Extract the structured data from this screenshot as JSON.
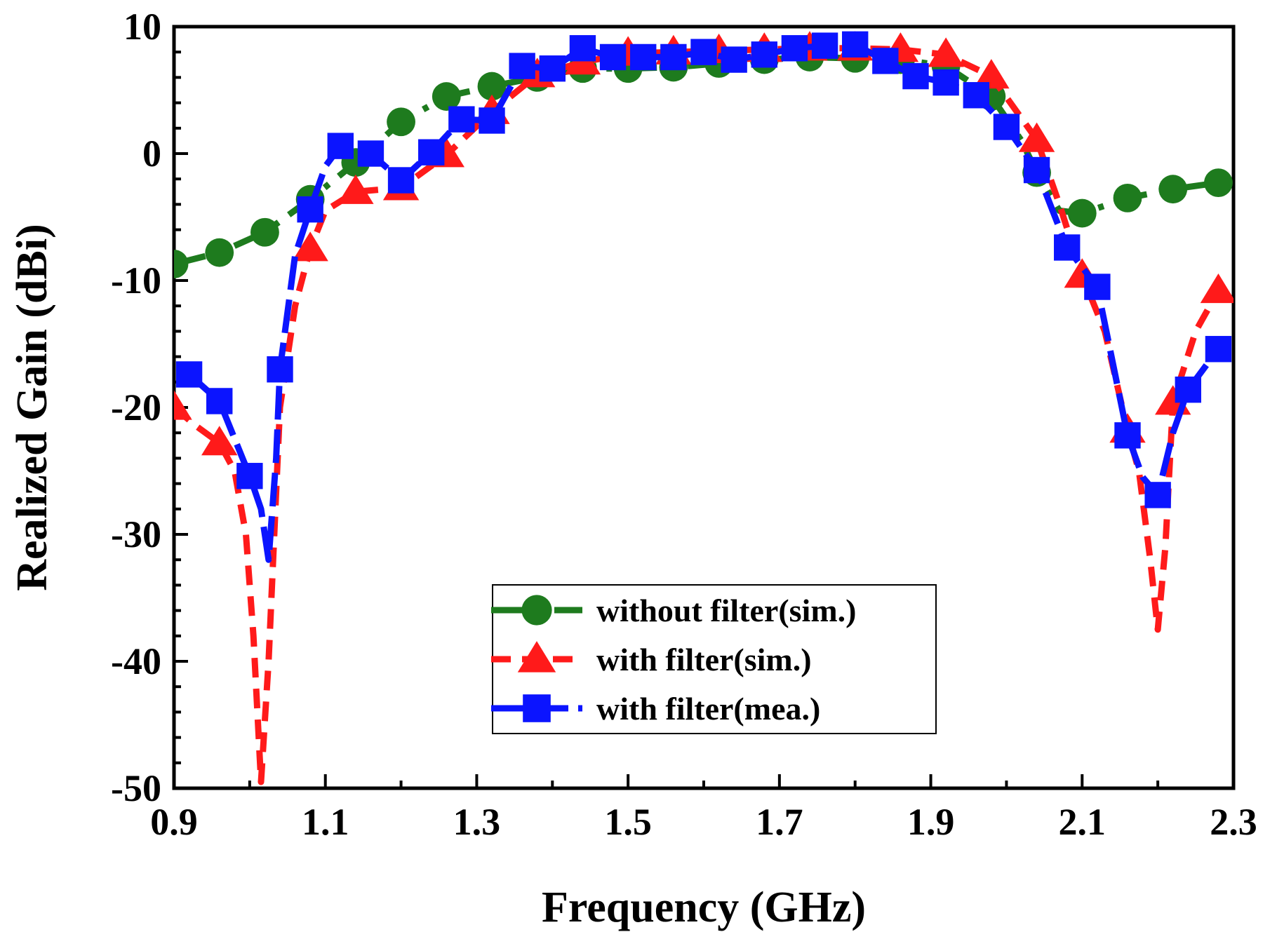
{
  "chart_data": {
    "type": "line",
    "title": "",
    "xlabel": "Frequency (GHz)",
    "ylabel": "Realized Gain (dBi)",
    "xlim": [
      0.9,
      2.3
    ],
    "ylim": [
      -50,
      10
    ],
    "x_ticks": [
      "0.9",
      "1.1",
      "1.3",
      "1.5",
      "1.7",
      "1.9",
      "2.1",
      "2.3"
    ],
    "x_tick_values": [
      0.9,
      1.1,
      1.3,
      1.5,
      1.7,
      1.9,
      2.1,
      2.3
    ],
    "y_ticks": [
      "10",
      "0",
      "-10",
      "-20",
      "-30",
      "-40",
      "-50"
    ],
    "y_tick_values": [
      10,
      0,
      -10,
      -20,
      -30,
      -40,
      -50
    ],
    "grid": false,
    "legend_position": "bottom-center",
    "series": [
      {
        "name": "without filter(sim.)",
        "color": "#1e7b1e",
        "dash": "long-dash-dot",
        "marker": "circle",
        "x": [
          0.9,
          0.96,
          1.02,
          1.08,
          1.14,
          1.2,
          1.26,
          1.32,
          1.38,
          1.44,
          1.5,
          1.56,
          1.62,
          1.68,
          1.74,
          1.8,
          1.86,
          1.92,
          1.98,
          2.04,
          2.1,
          2.16,
          2.22,
          2.28
        ],
        "y": [
          -8.7,
          -7.8,
          -6.2,
          -3.6,
          -0.7,
          2.5,
          4.5,
          5.3,
          6.0,
          6.7,
          6.7,
          6.8,
          7.1,
          7.4,
          7.6,
          7.5,
          7.4,
          6.9,
          4.5,
          -1.5,
          -4.7,
          -3.5,
          -2.8,
          -2.3
        ],
        "curve": [
          [
            0.9,
            -8.7
          ],
          [
            0.96,
            -7.8
          ],
          [
            1.02,
            -6.2
          ],
          [
            1.08,
            -3.6
          ],
          [
            1.14,
            -0.7
          ],
          [
            1.2,
            2.5
          ],
          [
            1.26,
            4.5
          ],
          [
            1.32,
            5.3
          ],
          [
            1.38,
            6.0
          ],
          [
            1.44,
            6.7
          ],
          [
            1.5,
            6.7
          ],
          [
            1.56,
            6.8
          ],
          [
            1.62,
            7.1
          ],
          [
            1.68,
            7.4
          ],
          [
            1.74,
            7.6
          ],
          [
            1.8,
            7.5
          ],
          [
            1.86,
            7.4
          ],
          [
            1.92,
            6.9
          ],
          [
            1.98,
            4.5
          ],
          [
            2.02,
            1.0
          ],
          [
            2.04,
            -1.5
          ],
          [
            2.07,
            -4.5
          ],
          [
            2.1,
            -4.7
          ],
          [
            2.16,
            -3.5
          ],
          [
            2.22,
            -2.8
          ],
          [
            2.28,
            -2.3
          ]
        ]
      },
      {
        "name": "with filter(sim.)",
        "color": "#ff1a1a",
        "dash": "dashed",
        "marker": "triangle",
        "x": [
          0.9,
          0.96,
          1.08,
          1.14,
          1.2,
          1.26,
          1.32,
          1.38,
          1.44,
          1.5,
          1.56,
          1.62,
          1.68,
          1.74,
          1.8,
          1.86,
          1.92,
          1.98,
          2.04,
          2.1,
          2.16,
          2.22,
          2.28
        ],
        "y": [
          -20.0,
          -22.8,
          -7.5,
          -3.0,
          -2.7,
          -0.1,
          3.3,
          6.2,
          7.2,
          7.9,
          8.0,
          8.1,
          8.2,
          8.3,
          8.3,
          8.2,
          7.8,
          6.1,
          1.1,
          -9.6,
          -21.8,
          -19.6,
          -10.8
        ],
        "curve": [
          [
            0.9,
            -20.0
          ],
          [
            0.93,
            -21.5
          ],
          [
            0.96,
            -22.8
          ],
          [
            0.98,
            -25.0
          ],
          [
            0.995,
            -30.0
          ],
          [
            1.005,
            -38.0
          ],
          [
            1.015,
            -49.5
          ],
          [
            1.025,
            -40.0
          ],
          [
            1.04,
            -20.0
          ],
          [
            1.06,
            -12.0
          ],
          [
            1.08,
            -7.5
          ],
          [
            1.1,
            -4.5
          ],
          [
            1.14,
            -3.0
          ],
          [
            1.2,
            -2.7
          ],
          [
            1.26,
            -0.1
          ],
          [
            1.32,
            3.3
          ],
          [
            1.38,
            6.2
          ],
          [
            1.44,
            7.2
          ],
          [
            1.5,
            7.9
          ],
          [
            1.56,
            8.0
          ],
          [
            1.62,
            8.1
          ],
          [
            1.68,
            8.2
          ],
          [
            1.74,
            8.3
          ],
          [
            1.8,
            8.3
          ],
          [
            1.86,
            8.2
          ],
          [
            1.92,
            7.8
          ],
          [
            1.98,
            6.1
          ],
          [
            2.04,
            1.1
          ],
          [
            2.07,
            -4.0
          ],
          [
            2.1,
            -9.6
          ],
          [
            2.13,
            -14.0
          ],
          [
            2.16,
            -21.8
          ],
          [
            2.175,
            -25.0
          ],
          [
            2.19,
            -32.0
          ],
          [
            2.2,
            -37.5
          ],
          [
            2.21,
            -31.0
          ],
          [
            2.22,
            -19.6
          ],
          [
            2.25,
            -14.0
          ],
          [
            2.28,
            -10.8
          ]
        ]
      },
      {
        "name": "with filter(mea.)",
        "color": "#0b14ff",
        "dash": "long-dash",
        "marker": "square",
        "x": [
          0.92,
          0.96,
          1.0,
          1.04,
          1.08,
          1.12,
          1.16,
          1.2,
          1.24,
          1.28,
          1.32,
          1.36,
          1.4,
          1.44,
          1.48,
          1.52,
          1.56,
          1.6,
          1.64,
          1.68,
          1.72,
          1.76,
          1.8,
          1.84,
          1.88,
          1.92,
          1.96,
          2.0,
          2.04,
          2.08,
          2.12,
          2.16,
          2.2,
          2.24,
          2.28
        ],
        "y": [
          -17.4,
          -19.5,
          -25.4,
          -17.0,
          -4.4,
          0.6,
          0.0,
          -2.1,
          0.1,
          2.7,
          2.6,
          6.9,
          6.7,
          8.3,
          7.6,
          7.6,
          7.6,
          8.0,
          7.4,
          7.8,
          8.3,
          8.5,
          8.6,
          7.3,
          6.1,
          5.6,
          4.6,
          2.1,
          -1.3,
          -7.4,
          -10.5,
          -22.2,
          -26.9,
          -18.6,
          -15.4
        ],
        "curve": [
          [
            0.92,
            -17.4
          ],
          [
            0.96,
            -19.5
          ],
          [
            1.0,
            -25.4
          ],
          [
            1.015,
            -28.0
          ],
          [
            1.025,
            -32.0
          ],
          [
            1.035,
            -24.0
          ],
          [
            1.04,
            -17.0
          ],
          [
            1.06,
            -8.0
          ],
          [
            1.08,
            -4.4
          ],
          [
            1.1,
            -1.0
          ],
          [
            1.12,
            0.6
          ],
          [
            1.16,
            0.0
          ],
          [
            1.2,
            -2.1
          ],
          [
            1.24,
            0.1
          ],
          [
            1.28,
            2.7
          ],
          [
            1.32,
            2.6
          ],
          [
            1.36,
            6.9
          ],
          [
            1.4,
            6.7
          ],
          [
            1.44,
            8.3
          ],
          [
            1.48,
            7.6
          ],
          [
            1.52,
            7.6
          ],
          [
            1.56,
            7.6
          ],
          [
            1.6,
            8.0
          ],
          [
            1.64,
            7.4
          ],
          [
            1.68,
            7.8
          ],
          [
            1.72,
            8.3
          ],
          [
            1.76,
            8.5
          ],
          [
            1.8,
            8.6
          ],
          [
            1.84,
            7.3
          ],
          [
            1.88,
            6.1
          ],
          [
            1.92,
            5.6
          ],
          [
            1.96,
            4.6
          ],
          [
            2.0,
            2.1
          ],
          [
            2.04,
            -1.3
          ],
          [
            2.08,
            -7.4
          ],
          [
            2.12,
            -10.5
          ],
          [
            2.16,
            -22.2
          ],
          [
            2.18,
            -25.5
          ],
          [
            2.2,
            -26.9
          ],
          [
            2.22,
            -22.0
          ],
          [
            2.24,
            -18.6
          ],
          [
            2.28,
            -15.4
          ]
        ]
      }
    ]
  }
}
